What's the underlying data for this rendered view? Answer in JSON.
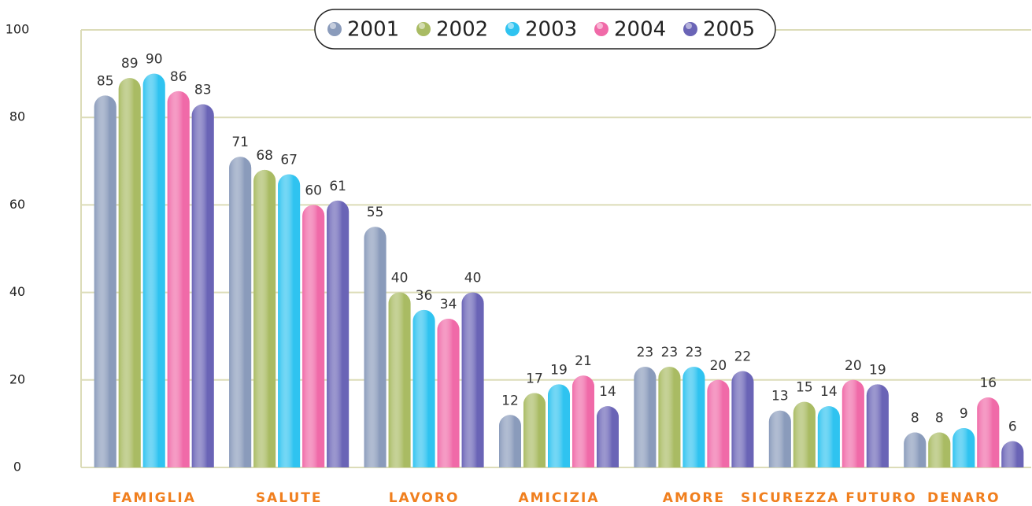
{
  "chart_data": {
    "type": "bar",
    "categories": [
      "FAMIGLIA",
      "SALUTE",
      "LAVORO",
      "AMICIZIA",
      "AMORE",
      "SICUREZZA FUTURO",
      "DENARO"
    ],
    "series": [
      {
        "name": "2001",
        "color": "#8a9bbb",
        "values": [
          85,
          71,
          55,
          12,
          23,
          13,
          8
        ]
      },
      {
        "name": "2002",
        "color": "#a9bb63",
        "values": [
          89,
          68,
          40,
          17,
          23,
          15,
          8
        ]
      },
      {
        "name": "2003",
        "color": "#2fc3f0",
        "values": [
          90,
          67,
          36,
          19,
          23,
          14,
          9
        ]
      },
      {
        "name": "2004",
        "color": "#f06aa8",
        "values": [
          86,
          60,
          34,
          21,
          20,
          20,
          16
        ]
      },
      {
        "name": "2005",
        "color": "#6a64b6",
        "values": [
          83,
          61,
          40,
          14,
          22,
          19,
          6
        ]
      }
    ],
    "ylim": [
      0,
      100
    ],
    "yticks": [
      0,
      20,
      40,
      60,
      80,
      100
    ],
    "grid": true
  }
}
